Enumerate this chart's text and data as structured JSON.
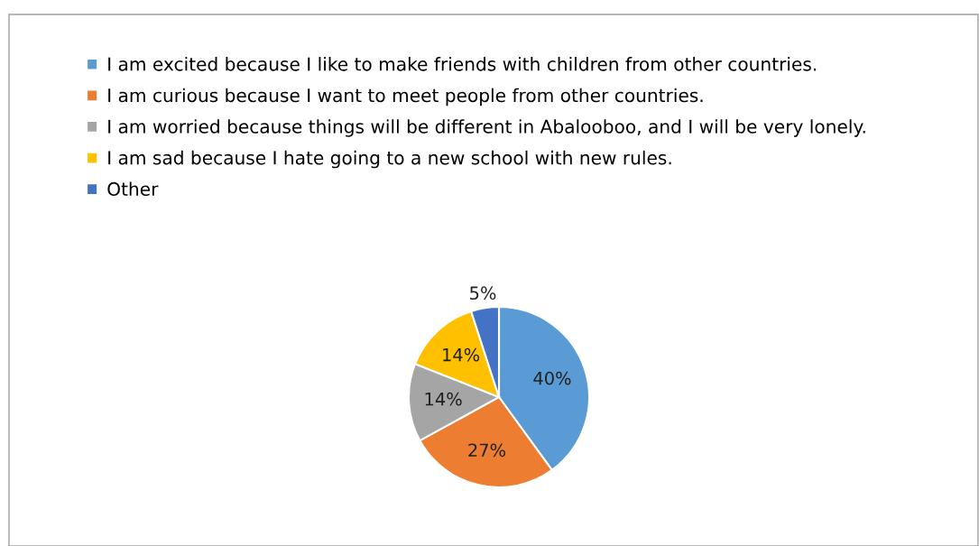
{
  "chart_data": {
    "type": "pie",
    "categories": [
      "I am excited because I like to make friends with children from other countries.",
      "I am curious because I want to meet people from other countries.",
      "I am worried because things will be different in Abalooboo, and I will be very lonely.",
      "I am sad because I hate going to a new school with new rules.",
      "Other"
    ],
    "values": [
      40,
      27,
      14,
      14,
      5
    ],
    "colors": [
      "#5b9bd5",
      "#ed7d31",
      "#a5a5a5",
      "#ffc000",
      "#4472c4"
    ],
    "value_labels": [
      "40%",
      "27%",
      "14%",
      "14%",
      "5%"
    ],
    "legend": "top left"
  }
}
